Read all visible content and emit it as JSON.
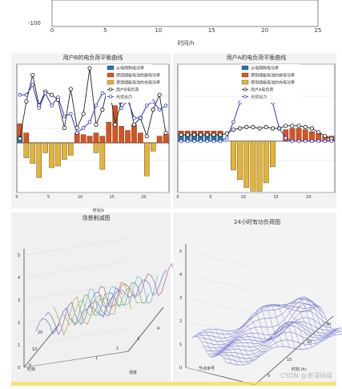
{
  "top_panel": {
    "xlabel": "时间/h",
    "ytick_label": "-100",
    "xticks": [
      "0",
      "5",
      "10",
      "15",
      "20",
      "25"
    ]
  },
  "panels": {
    "b_title": "用户B的电负荷平衡曲线",
    "a_title": "用户A的电负荷平衡曲线",
    "scene_title": "场景削减图",
    "surface_title": "24小时有功负荷图"
  },
  "axes": {
    "x_time": "时间/h",
    "scene_y": "时刻",
    "scene_x": "场景",
    "surface_x": "节点序号",
    "surface_y": "时刻 (h)"
  },
  "legend_b": [
    "从电网购电功率",
    "使用储能电池的放电功率",
    "使用储能电池的充电功率",
    "用户B电负荷",
    "光伏出力"
  ],
  "legend_a": [
    "从电网购电功率",
    "使用储能电池的放电功率",
    "使用储能电池的充电功率",
    "用户A电负荷",
    "光伏出力"
  ],
  "watermark": "CSDN @资深码侯",
  "colors": {
    "grid_blue": "#1f77b4",
    "battery_discharge": "#d9531e",
    "battery_charge": "#e5b433",
    "load_black": "#222222",
    "pv_blue": "#2d36c5",
    "mesh_blue": "#4a53c7"
  },
  "chart_data": [
    {
      "type": "line",
      "title": "",
      "xlabel": "时间/h",
      "ylabel": "",
      "xlim": [
        0,
        25
      ],
      "x": [
        0,
        5,
        10,
        15,
        20,
        25
      ],
      "ylim_visible": [
        -100
      ],
      "series": []
    },
    {
      "type": "bar",
      "title": "用户B的电负荷平衡曲线",
      "xlabel": "时间/h",
      "x": [
        1,
        2,
        3,
        4,
        5,
        6,
        7,
        8,
        9,
        10,
        11,
        12,
        13,
        14,
        15,
        16,
        17,
        18,
        19,
        20,
        21,
        22,
        23,
        24
      ],
      "series": [
        {
          "name": "从电网购电功率",
          "values": [
            8,
            0,
            0,
            0,
            0,
            0,
            0,
            0,
            0,
            0,
            0,
            0,
            0,
            0,
            0,
            0,
            0,
            0,
            0,
            0,
            0,
            0,
            0,
            0
          ]
        },
        {
          "name": "使用储能电池的放电功率",
          "values": [
            15,
            12,
            0,
            0,
            0,
            0,
            0,
            0,
            0,
            12,
            10,
            8,
            12,
            8,
            25,
            45,
            20,
            15,
            22,
            12,
            0,
            0,
            8,
            10
          ]
        },
        {
          "name": "使用储能电池的充电功率",
          "values": [
            0,
            -18,
            -25,
            -42,
            -12,
            -30,
            -28,
            -20,
            -15,
            0,
            0,
            0,
            -12,
            -32,
            0,
            0,
            0,
            0,
            0,
            0,
            -40,
            -10,
            0,
            0
          ]
        },
        {
          "name": "用户B电负荷",
          "values": [
            5,
            50,
            82,
            45,
            62,
            58,
            52,
            18,
            65,
            18,
            35,
            90,
            22,
            40,
            72,
            22,
            50,
            58,
            22,
            30,
            8,
            40,
            58,
            12
          ]
        },
        {
          "name": "光伏出力",
          "values": [
            58,
            58,
            70,
            42,
            60,
            45,
            55,
            32,
            35,
            12,
            18,
            25,
            45,
            60,
            58,
            60,
            42,
            52,
            30,
            30,
            45,
            50,
            40,
            45
          ]
        }
      ]
    },
    {
      "type": "bar",
      "title": "用户A的电负荷平衡曲线",
      "xlabel": "时间/h",
      "x": [
        1,
        2,
        3,
        4,
        5,
        6,
        7,
        8,
        9,
        10,
        11,
        12,
        13,
        14,
        15,
        16,
        17,
        18,
        19,
        20,
        21,
        22,
        23,
        24
      ],
      "series": [
        {
          "name": "从电网购电功率",
          "values": [
            8,
            8,
            8,
            8,
            8,
            8,
            8,
            0,
            0,
            0,
            0,
            0,
            0,
            0,
            0,
            0,
            0,
            0,
            0,
            0,
            0,
            0,
            0,
            0
          ]
        },
        {
          "name": "使用储能电池的放电功率",
          "values": [
            8,
            8,
            8,
            8,
            8,
            8,
            8,
            0,
            0,
            0,
            0,
            0,
            0,
            0,
            0,
            0,
            18,
            20,
            20,
            18,
            15,
            12,
            8,
            8
          ]
        },
        {
          "name": "使用储能电池的充电功率",
          "values": [
            0,
            0,
            0,
            0,
            0,
            0,
            0,
            0,
            -45,
            -60,
            -72,
            -78,
            -78,
            -65,
            -40,
            0,
            0,
            0,
            0,
            0,
            0,
            0,
            0,
            0
          ]
        },
        {
          "name": "用户A电负荷",
          "values": [
            10,
            10,
            10,
            10,
            10,
            10,
            10,
            12,
            18,
            20,
            22,
            22,
            20,
            22,
            20,
            20,
            24,
            24,
            24,
            22,
            20,
            14,
            8,
            4
          ]
        },
        {
          "name": "光伏出力",
          "values": [
            0,
            0,
            0,
            0,
            0,
            0,
            0,
            5,
            30,
            60,
            92,
            105,
            110,
            95,
            60,
            20,
            5,
            0,
            0,
            0,
            0,
            0,
            0,
            0
          ]
        }
      ]
    },
    {
      "type": "line",
      "title": "场景削减图",
      "xlabel": "场景",
      "ylabel": "时刻",
      "x_ticks": [
        "1",
        "2",
        "3",
        "4"
      ],
      "y_ticks": [
        "0",
        "10",
        "20"
      ],
      "z_ticks": [
        "0",
        "1",
        "2",
        "3",
        "4",
        "5"
      ]
    },
    {
      "type": "heatmap",
      "title": "24小时有功负荷图",
      "xlabel": "节点序号",
      "ylabel": "时刻 (h)",
      "y_ticks": [
        "0",
        "10",
        "20",
        "30"
      ],
      "z_ticks": [
        "0",
        "1",
        "2",
        "3",
        "4",
        "5"
      ]
    }
  ]
}
